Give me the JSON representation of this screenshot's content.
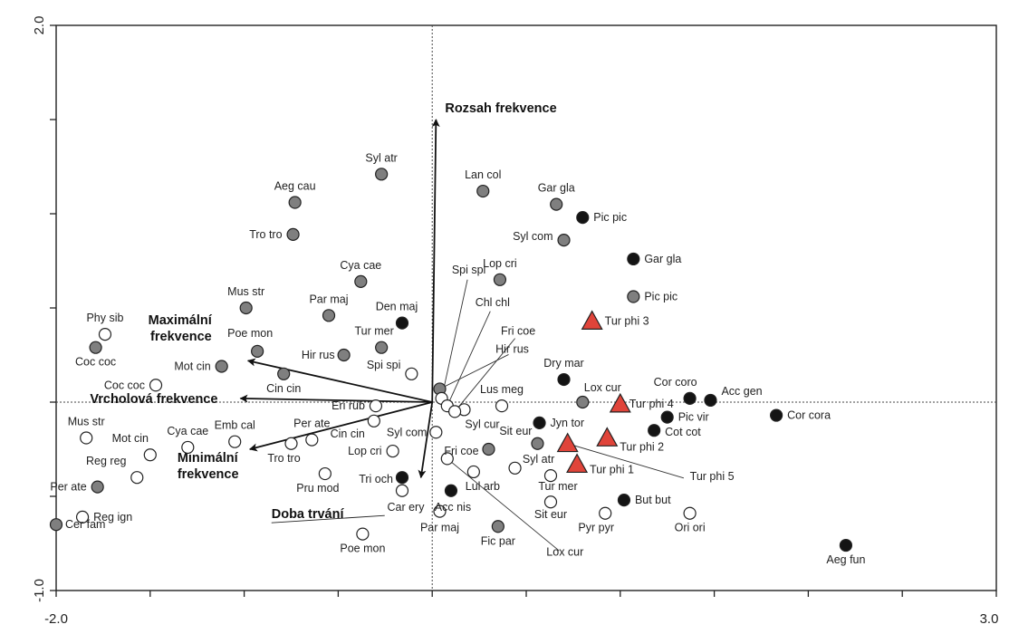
{
  "chart_data": {
    "type": "scatter",
    "title": "",
    "xlabel": "",
    "ylabel": "",
    "xlim": [
      -2.0,
      3.0
    ],
    "ylim": [
      -1.0,
      2.0
    ],
    "x_tick_labels": [
      "-2.0",
      "3.0"
    ],
    "y_tick_labels": [
      "-1.0",
      "2.0"
    ],
    "grid": false,
    "colors": {
      "grey": "#7f7f7f",
      "black": "#141414",
      "white": "#ffffff",
      "triangle": "#e0443a"
    },
    "vectors": [
      {
        "label": "Rozsah frekvence",
        "x": 0.02,
        "y": 1.5
      },
      {
        "label": "Maximální frekvence",
        "x": -0.98,
        "y": 0.22
      },
      {
        "label": "Vrcholová frekvence",
        "x": -1.02,
        "y": 0.02
      },
      {
        "label": "Minimální frekvence",
        "x": -0.97,
        "y": -0.25
      },
      {
        "label": "Doba trvání",
        "x": -0.06,
        "y": -0.4
      }
    ],
    "points": [
      {
        "label": "Syl atr",
        "x": -0.27,
        "y": 1.21,
        "style": "grey"
      },
      {
        "label": "Aeg cau",
        "x": -0.73,
        "y": 1.06,
        "style": "grey"
      },
      {
        "label": "Tro tro",
        "x": -0.74,
        "y": 0.89,
        "style": "grey"
      },
      {
        "label": "Cya cae",
        "x": -0.38,
        "y": 0.64,
        "style": "grey"
      },
      {
        "label": "Mus str",
        "x": -0.99,
        "y": 0.5,
        "style": "grey"
      },
      {
        "label": "Par maj",
        "x": -0.55,
        "y": 0.46,
        "style": "grey"
      },
      {
        "label": "Den maj",
        "x": -0.16,
        "y": 0.42,
        "style": "black"
      },
      {
        "label": "Tur mer",
        "x": -0.27,
        "y": 0.29,
        "style": "grey"
      },
      {
        "label": "Hir rus",
        "x": -0.47,
        "y": 0.25,
        "style": "grey"
      },
      {
        "label": "Poe mon",
        "x": -0.93,
        "y": 0.27,
        "style": "grey"
      },
      {
        "label": "Mot cin",
        "x": -1.12,
        "y": 0.19,
        "style": "grey"
      },
      {
        "label": "Cin cin",
        "x": -0.79,
        "y": 0.15,
        "style": "grey"
      },
      {
        "label": "Phy sib",
        "x": -1.74,
        "y": 0.36,
        "style": "white"
      },
      {
        "label": "Coc coc",
        "x": -1.79,
        "y": 0.29,
        "style": "grey"
      },
      {
        "label": "Coc coc",
        "x": -1.47,
        "y": 0.09,
        "style": "white"
      },
      {
        "label": "Spi spi",
        "x": -0.11,
        "y": 0.15,
        "style": "white"
      },
      {
        "label": "Lan col",
        "x": 0.27,
        "y": 1.12,
        "style": "grey"
      },
      {
        "label": "Gar gla",
        "x": 0.66,
        "y": 1.05,
        "style": "grey"
      },
      {
        "label": "Pic pic",
        "x": 0.8,
        "y": 0.98,
        "style": "black"
      },
      {
        "label": "Syl com",
        "x": 0.7,
        "y": 0.86,
        "style": "grey"
      },
      {
        "label": "Gar gla",
        "x": 1.07,
        "y": 0.76,
        "style": "black"
      },
      {
        "label": "Lop cri",
        "x": 0.36,
        "y": 0.65,
        "style": "grey"
      },
      {
        "label": "Pic pic",
        "x": 1.07,
        "y": 0.56,
        "style": "grey"
      },
      {
        "label": "Tur phi 3",
        "x": 0.85,
        "y": 0.43,
        "style": "triangle"
      },
      {
        "label": "Dry mar",
        "x": 0.7,
        "y": 0.12,
        "style": "black"
      },
      {
        "label": "Lox cur",
        "x": 0.8,
        "y": 0.0,
        "style": "grey"
      },
      {
        "label": "Cor coro",
        "x": 1.37,
        "y": 0.02,
        "style": "black"
      },
      {
        "label": "Acc gen",
        "x": 1.48,
        "y": 0.01,
        "style": "black"
      },
      {
        "label": "Cor cora",
        "x": 1.83,
        "y": -0.07,
        "style": "black"
      },
      {
        "label": "Tur phi 4",
        "x": 1.0,
        "y": -0.01,
        "style": "triangle"
      },
      {
        "label": "Pic vir",
        "x": 1.25,
        "y": -0.08,
        "style": "black"
      },
      {
        "label": "Cot cot",
        "x": 1.18,
        "y": -0.15,
        "style": "black"
      },
      {
        "label": "Jyn tor",
        "x": 0.57,
        "y": -0.11,
        "style": "black"
      },
      {
        "label": "Sit eur",
        "x": 0.56,
        "y": -0.22,
        "style": "grey"
      },
      {
        "label": "Tur phi 2",
        "x": 0.93,
        "y": -0.19,
        "style": "triangle"
      },
      {
        "label": "Tur phi 5",
        "x": 0.72,
        "y": -0.22,
        "style": "triangle"
      },
      {
        "label": "Tur phi 1",
        "x": 0.77,
        "y": -0.33,
        "style": "triangle"
      },
      {
        "label": "Lus meg",
        "x": 0.37,
        "y": -0.02,
        "style": "white"
      },
      {
        "label": "Syl cur",
        "x": 0.17,
        "y": -0.04,
        "style": "white"
      },
      {
        "label": "Hir rus",
        "x": 0.04,
        "y": 0.07,
        "style": "grey"
      },
      {
        "label": "Spi spi",
        "x": 0.05,
        "y": 0.02,
        "style": "white"
      },
      {
        "label": "Chl chl",
        "x": 0.08,
        "y": -0.02,
        "style": "white"
      },
      {
        "label": "Fri coe",
        "x": 0.12,
        "y": -0.05,
        "style": "white"
      },
      {
        "label": "Syl com",
        "x": 0.02,
        "y": -0.16,
        "style": "white"
      },
      {
        "label": "Fri coe",
        "x": 0.3,
        "y": -0.25,
        "style": "grey"
      },
      {
        "label": "Syl atr",
        "x": 0.44,
        "y": -0.35,
        "style": "white"
      },
      {
        "label": "Lul arb",
        "x": 0.22,
        "y": -0.37,
        "style": "white"
      },
      {
        "label": "Tur mer",
        "x": 0.63,
        "y": -0.39,
        "style": "white"
      },
      {
        "label": "Acc nis",
        "x": 0.1,
        "y": -0.47,
        "style": "black"
      },
      {
        "label": "But but",
        "x": 1.02,
        "y": -0.52,
        "style": "black"
      },
      {
        "label": "Sit eur",
        "x": 0.63,
        "y": -0.53,
        "style": "white"
      },
      {
        "label": "Pyr pyr",
        "x": 0.92,
        "y": -0.59,
        "style": "white"
      },
      {
        "label": "Ori ori",
        "x": 1.37,
        "y": -0.59,
        "style": "white"
      },
      {
        "label": "Fic par",
        "x": 0.35,
        "y": -0.66,
        "style": "grey"
      },
      {
        "label": "Lox cur",
        "x": 0.08,
        "y": -0.3,
        "style": "white"
      },
      {
        "label": "Aeg fun",
        "x": 2.2,
        "y": -0.76,
        "style": "black"
      },
      {
        "label": "Car ery",
        "x": -0.16,
        "y": -0.47,
        "style": "white"
      },
      {
        "label": "Par maj",
        "x": 0.04,
        "y": -0.58,
        "style": "white"
      },
      {
        "label": "Eri rub",
        "x": -0.3,
        "y": -0.02,
        "style": "white"
      },
      {
        "label": "Cin cin",
        "x": -0.31,
        "y": -0.1,
        "style": "white"
      },
      {
        "label": "Lop cri",
        "x": -0.21,
        "y": -0.26,
        "style": "white"
      },
      {
        "label": "Tri och",
        "x": -0.16,
        "y": -0.4,
        "style": "black"
      },
      {
        "label": "Per ate",
        "x": -0.64,
        "y": -0.2,
        "style": "white"
      },
      {
        "label": "Tro tro",
        "x": -0.75,
        "y": -0.22,
        "style": "white"
      },
      {
        "label": "Emb cal",
        "x": -1.05,
        "y": -0.21,
        "style": "white"
      },
      {
        "label": "Cya cae",
        "x": -1.3,
        "y": -0.24,
        "style": "white"
      },
      {
        "label": "Pru mod",
        "x": -0.57,
        "y": -0.38,
        "style": "white"
      },
      {
        "label": "Poe mon",
        "x": -0.37,
        "y": -0.7,
        "style": "white"
      },
      {
        "label": "Mot cin",
        "x": -1.5,
        "y": -0.28,
        "style": "white"
      },
      {
        "label": "Mus str",
        "x": -1.84,
        "y": -0.19,
        "style": "white"
      },
      {
        "label": "Reg reg",
        "x": -1.57,
        "y": -0.4,
        "style": "white"
      },
      {
        "label": "Per ate",
        "x": -1.78,
        "y": -0.45,
        "style": "grey"
      },
      {
        "label": "Reg ign",
        "x": -1.86,
        "y": -0.61,
        "style": "white"
      },
      {
        "label": "Cer fam",
        "x": -2.0,
        "y": -0.65,
        "style": "grey"
      }
    ]
  }
}
